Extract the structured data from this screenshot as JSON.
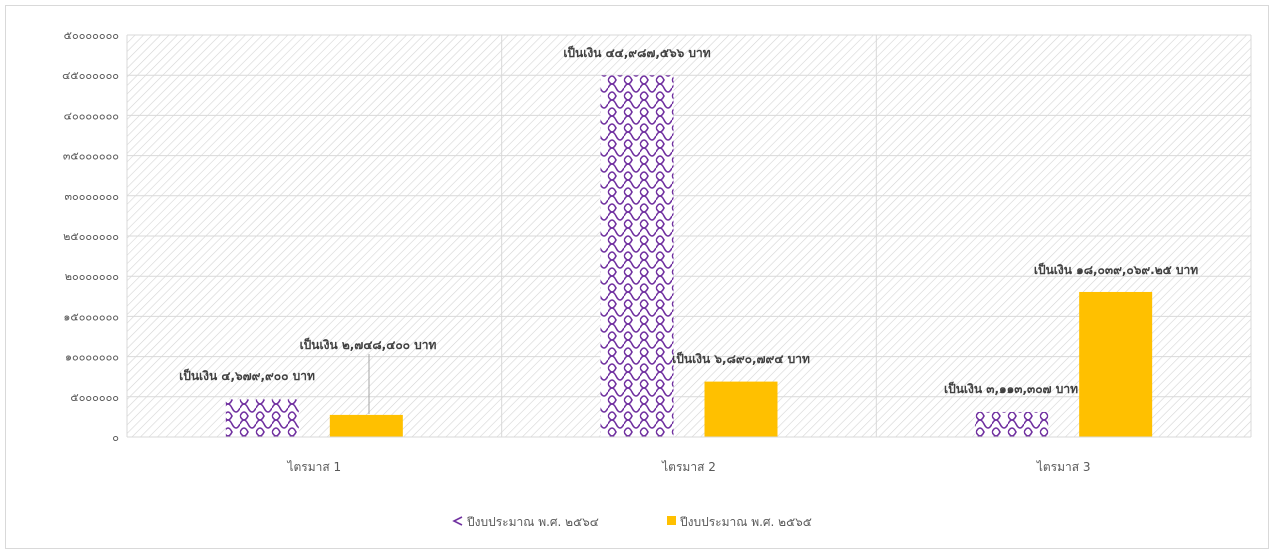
{
  "chart_data": {
    "type": "bar",
    "title": "",
    "xlabel": "",
    "ylabel": "",
    "ylim": [
      0,
      50000000
    ],
    "yticks": [
      "๐",
      "๕๐๐๐๐๐๐",
      "๑๐๐๐๐๐๐๐",
      "๑๕๐๐๐๐๐๐",
      "๒๐๐๐๐๐๐๐",
      "๒๕๐๐๐๐๐๐",
      "๓๐๐๐๐๐๐๐",
      "๓๕๐๐๐๐๐๐",
      "๔๐๐๐๐๐๐๐",
      "๔๕๐๐๐๐๐๐",
      "๕๐๐๐๐๐๐๐"
    ],
    "ytick_values": [
      0,
      5000000,
      10000000,
      15000000,
      20000000,
      25000000,
      30000000,
      35000000,
      40000000,
      45000000,
      50000000
    ],
    "categories": [
      "ไตรมาส 1",
      "ไตรมาส 2",
      "ไตรมาส 3"
    ],
    "series": [
      {
        "name": "ปีงบประมาณ พ.ศ. ๒๕๖๔",
        "values": [
          4679900,
          44987566,
          3113307
        ],
        "labels": [
          "เป็นเงิน ๔,๖๗๙,๙๐๐ บาท",
          "เป็นเงิน ๔๔,๙๘๗,๕๖๖ บาท",
          "เป็นเงิน ๓,๑๑๓,๓๐๗ บาท"
        ],
        "color": "#7030a0",
        "pattern": "weave"
      },
      {
        "name": "ปีงบประมาณ พ.ศ. ๒๕๖๕",
        "values": [
          2748400,
          6890794,
          18039069.25
        ],
        "labels": [
          "เป็นเงิน ๒,๗๔๘,๔๐๐ บาท",
          "เป็นเงิน ๖,๘๙๐,๗๙๔ บาท",
          "เป็นเงิน ๑๘,๐๓๙,๐๖๙.๒๕ บาท"
        ],
        "color": "#ffc000",
        "pattern": "solid"
      }
    ],
    "grid": true,
    "legend_position": "bottom"
  }
}
